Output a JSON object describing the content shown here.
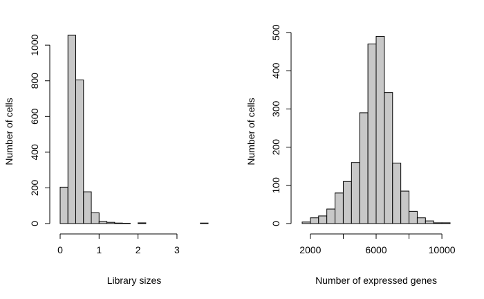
{
  "chart_data": [
    {
      "type": "bar",
      "subtype": "histogram",
      "title": "",
      "xlabel": "Library sizes",
      "ylabel": "Number of cells",
      "bin_width": 0.2,
      "bins": [
        {
          "x0": 0.0,
          "x1": 0.2,
          "count": 204
        },
        {
          "x0": 0.2,
          "x1": 0.4,
          "count": 1055
        },
        {
          "x0": 0.4,
          "x1": 0.6,
          "count": 805
        },
        {
          "x0": 0.6,
          "x1": 0.8,
          "count": 178
        },
        {
          "x0": 0.8,
          "x1": 1.0,
          "count": 60
        },
        {
          "x0": 1.0,
          "x1": 1.2,
          "count": 12
        },
        {
          "x0": 1.2,
          "x1": 1.4,
          "count": 7
        },
        {
          "x0": 1.4,
          "x1": 1.6,
          "count": 3
        },
        {
          "x0": 1.6,
          "x1": 1.8,
          "count": 2
        },
        {
          "x0": 1.8,
          "x1": 2.0,
          "count": 0
        },
        {
          "x0": 2.0,
          "x1": 2.2,
          "count": 4
        },
        {
          "x0": 2.2,
          "x1": 2.4,
          "count": 0
        },
        {
          "x0": 2.4,
          "x1": 2.6,
          "count": 0
        },
        {
          "x0": 2.6,
          "x1": 2.8,
          "count": 0
        },
        {
          "x0": 2.8,
          "x1": 3.0,
          "count": 0
        },
        {
          "x0": 3.0,
          "x1": 3.2,
          "count": 0
        },
        {
          "x0": 3.2,
          "x1": 3.4,
          "count": 0
        },
        {
          "x0": 3.4,
          "x1": 3.6,
          "count": 0
        },
        {
          "x0": 3.6,
          "x1": 3.8,
          "count": 3
        }
      ],
      "xlim": [
        0,
        3.8
      ],
      "ylim": [
        0,
        1055
      ],
      "x_ticks": [
        0,
        1,
        2,
        3
      ],
      "x_tick_labels": [
        "0",
        "1",
        "2",
        "3"
      ],
      "y_ticks": [
        0,
        200,
        400,
        600,
        800,
        1000
      ],
      "y_tick_labels": [
        "0",
        "200",
        "400",
        "600",
        "800",
        "1000"
      ],
      "bar_fill": "#c8c8c8",
      "bar_stroke": "#000000",
      "grid": false,
      "legend": "none"
    },
    {
      "type": "bar",
      "subtype": "histogram",
      "title": "",
      "xlabel": "Number of expressed genes",
      "ylabel": "Number of cells",
      "bin_width": 500,
      "bins": [
        {
          "x0": 1500,
          "x1": 2000,
          "count": 4
        },
        {
          "x0": 2000,
          "x1": 2500,
          "count": 15
        },
        {
          "x0": 2500,
          "x1": 3000,
          "count": 20
        },
        {
          "x0": 3000,
          "x1": 3500,
          "count": 38
        },
        {
          "x0": 3500,
          "x1": 4000,
          "count": 80
        },
        {
          "x0": 4000,
          "x1": 4500,
          "count": 110
        },
        {
          "x0": 4500,
          "x1": 5000,
          "count": 160
        },
        {
          "x0": 5000,
          "x1": 5500,
          "count": 290
        },
        {
          "x0": 5500,
          "x1": 6000,
          "count": 470
        },
        {
          "x0": 6000,
          "x1": 6500,
          "count": 490
        },
        {
          "x0": 6500,
          "x1": 7000,
          "count": 343
        },
        {
          "x0": 7000,
          "x1": 7500,
          "count": 158
        },
        {
          "x0": 7500,
          "x1": 8000,
          "count": 85
        },
        {
          "x0": 8000,
          "x1": 8500,
          "count": 32
        },
        {
          "x0": 8500,
          "x1": 9000,
          "count": 15
        },
        {
          "x0": 9000,
          "x1": 9500,
          "count": 7
        },
        {
          "x0": 9500,
          "x1": 10000,
          "count": 2
        },
        {
          "x0": 10000,
          "x1": 10500,
          "count": 2
        }
      ],
      "xlim": [
        1500,
        10500
      ],
      "ylim": [
        0,
        500
      ],
      "x_ticks": [
        2000,
        4000,
        6000,
        8000,
        10000
      ],
      "x_tick_labels": [
        "2000",
        "",
        "6000",
        "",
        "10000"
      ],
      "y_ticks": [
        0,
        100,
        200,
        300,
        400,
        500
      ],
      "y_tick_labels": [
        "0",
        "100",
        "200",
        "300",
        "400",
        "500"
      ],
      "bar_fill": "#c8c8c8",
      "bar_stroke": "#000000",
      "grid": false,
      "legend": "none"
    }
  ]
}
